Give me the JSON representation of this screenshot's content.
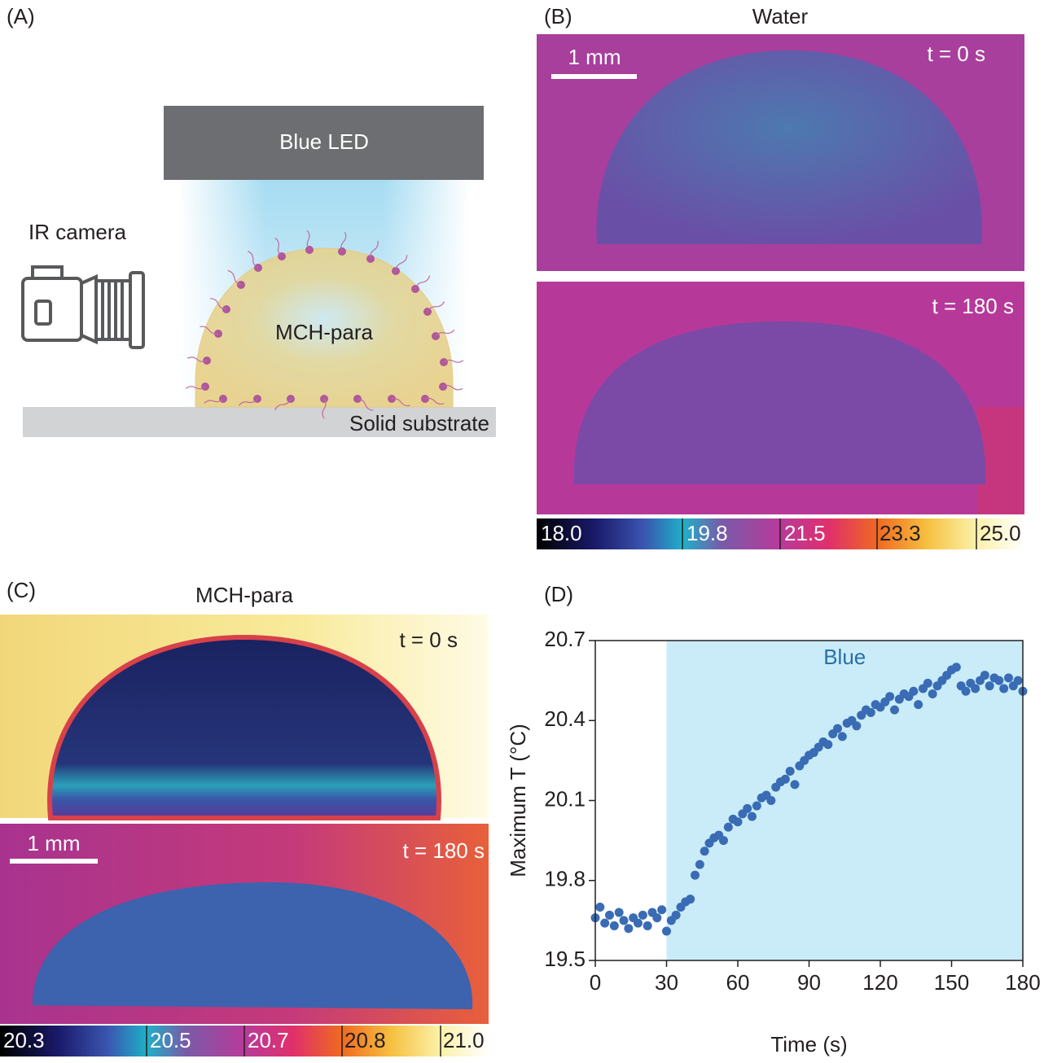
{
  "panels": {
    "a": {
      "label": "(A)",
      "led": "Blue LED",
      "camera": "IR camera",
      "droplet": "MCH-para",
      "substrate": "Solid substrate"
    },
    "b": {
      "label": "(B)",
      "title": "Water",
      "scale": "1 mm",
      "times": [
        "t = 0 s",
        "t = 180 s"
      ],
      "colorbar": [
        "18.0",
        "19.8",
        "21.5",
        "23.3",
        "25.0"
      ]
    },
    "c": {
      "label": "(C)",
      "title": "MCH-para",
      "scale": "1 mm",
      "times": [
        "t = 0 s",
        "t = 180 s"
      ],
      "colorbar": [
        "20.3",
        "20.5",
        "20.7",
        "20.8",
        "21.0"
      ]
    }
  },
  "chart_data": {
    "type": "scatter",
    "label": "(D)",
    "xlabel": "Time (s)",
    "ylabel": "Maximum T (°C)",
    "annotation": "Blue",
    "span": [
      30,
      180
    ],
    "span_color": "#c9ecf8",
    "color": "#3a6bb5",
    "xlim": [
      0,
      180
    ],
    "ylim": [
      19.5,
      20.7
    ],
    "xticks": [
      0,
      30,
      60,
      90,
      120,
      150,
      180
    ],
    "yticks": [
      19.5,
      19.8,
      20.1,
      20.4,
      20.7
    ],
    "x": [
      0,
      2,
      4,
      6,
      8,
      10,
      12,
      14,
      16,
      18,
      20,
      22,
      24,
      26,
      28,
      30,
      32,
      34,
      36,
      38,
      40,
      42,
      44,
      46,
      48,
      50,
      52,
      54,
      56,
      58,
      60,
      62,
      64,
      66,
      68,
      70,
      72,
      74,
      76,
      78,
      80,
      82,
      84,
      86,
      88,
      90,
      92,
      94,
      96,
      98,
      100,
      102,
      104,
      106,
      108,
      110,
      112,
      114,
      116,
      118,
      120,
      122,
      124,
      126,
      128,
      130,
      132,
      134,
      136,
      138,
      140,
      142,
      144,
      146,
      148,
      150,
      152,
      154,
      156,
      158,
      160,
      162,
      164,
      166,
      168,
      170,
      172,
      174,
      176,
      178,
      180
    ],
    "values": [
      19.66,
      19.7,
      19.64,
      19.67,
      19.63,
      19.68,
      19.65,
      19.62,
      19.66,
      19.64,
      19.67,
      19.63,
      19.68,
      19.66,
      19.69,
      19.61,
      19.65,
      19.67,
      19.7,
      19.72,
      19.73,
      19.82,
      19.86,
      19.91,
      19.94,
      19.96,
      19.97,
      19.95,
      20.0,
      20.03,
      20.02,
      20.05,
      20.07,
      20.04,
      20.08,
      20.11,
      20.12,
      20.1,
      20.15,
      20.17,
      20.18,
      20.21,
      20.16,
      20.23,
      20.25,
      20.27,
      20.28,
      20.3,
      20.32,
      20.31,
      20.35,
      20.37,
      20.34,
      20.39,
      20.4,
      20.38,
      20.42,
      20.44,
      20.43,
      20.46,
      20.45,
      20.47,
      20.49,
      20.44,
      20.48,
      20.5,
      20.49,
      20.51,
      20.46,
      20.52,
      20.54,
      20.5,
      20.53,
      20.55,
      20.57,
      20.59,
      20.6,
      20.53,
      20.51,
      20.54,
      20.52,
      20.55,
      20.57,
      20.53,
      20.56,
      20.55,
      20.52,
      20.56,
      20.53,
      20.55,
      20.51
    ]
  }
}
